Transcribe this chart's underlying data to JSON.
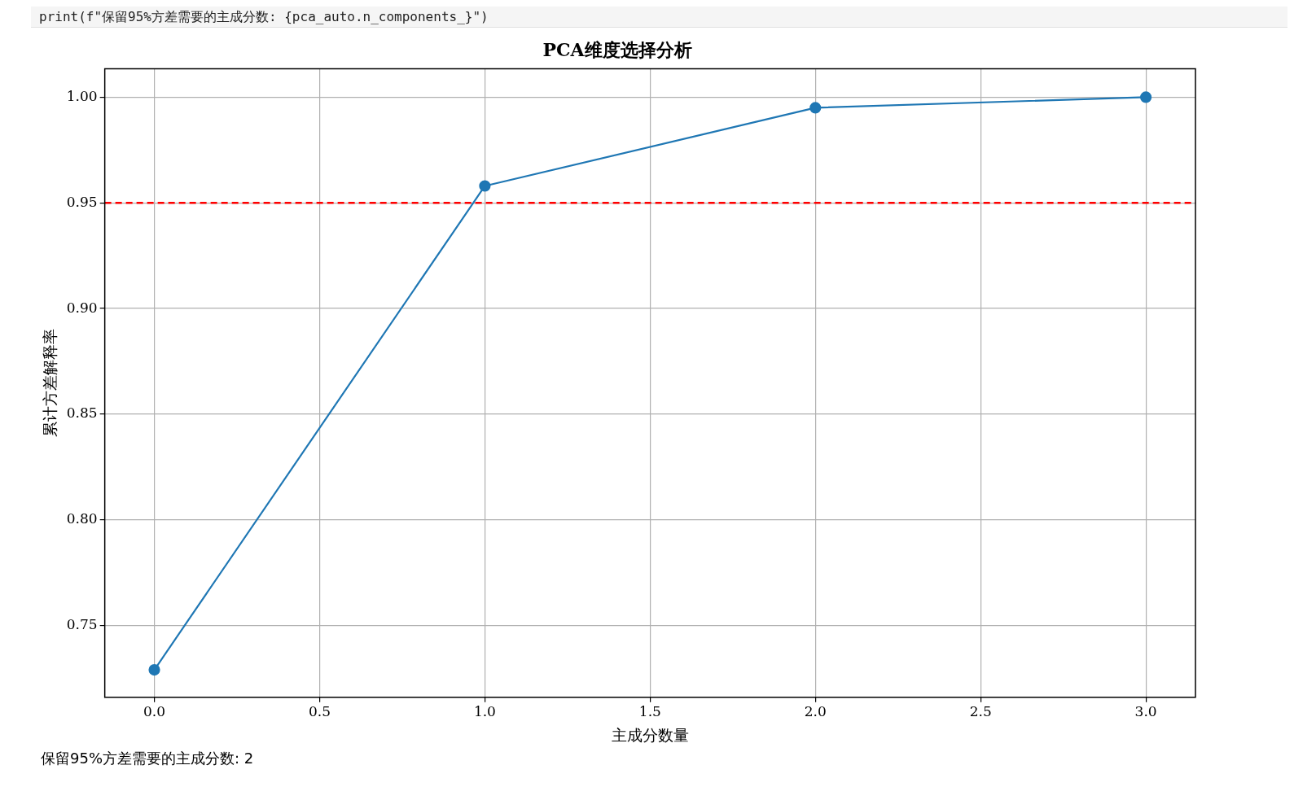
{
  "chart_data": {
    "type": "line",
    "title": "PCA维度选择分析",
    "xlabel": "主成分数量",
    "ylabel": "累计方差解释率",
    "x": [
      0,
      1,
      2,
      3
    ],
    "series": [
      {
        "color": "#1f77b4",
        "values": [
          0.729,
          0.958,
          0.995,
          1.0
        ]
      }
    ],
    "xlim": [
      -0.15,
      3.15
    ],
    "xticks": [
      {
        "value": 0,
        "label": "0.0"
      },
      0.5,
      {
        "value": 1,
        "label": "1.0"
      },
      1.5,
      {
        "value": 2,
        "label": "2.0"
      },
      2.5,
      {
        "value": 3,
        "label": "3.0"
      }
    ],
    "ylim": [
      0.716,
      1.0135
    ],
    "yticks": [
      {
        "value": 0.75,
        "label": "0.75"
      },
      {
        "value": 0.8,
        "label": "0.80"
      },
      {
        "value": 0.85,
        "label": "0.85"
      },
      {
        "value": 0.9,
        "label": "0.90"
      },
      {
        "value": 0.95,
        "label": "0.95"
      },
      {
        "value": 1.0,
        "label": "1.00"
      }
    ],
    "ref_lines": [
      {
        "axis": "y",
        "value": 0.95,
        "color": "#ff0000",
        "line_style": "dashed"
      }
    ],
    "grid": true,
    "legend": false,
    "marker": "circle",
    "line_style": "solid",
    "annotations": [
      "print(f\"保留95%方差需要的主成分数: {pca_auto.n_components_}\")",
      "保留95%方差需要的主成分数: 2"
    ]
  }
}
